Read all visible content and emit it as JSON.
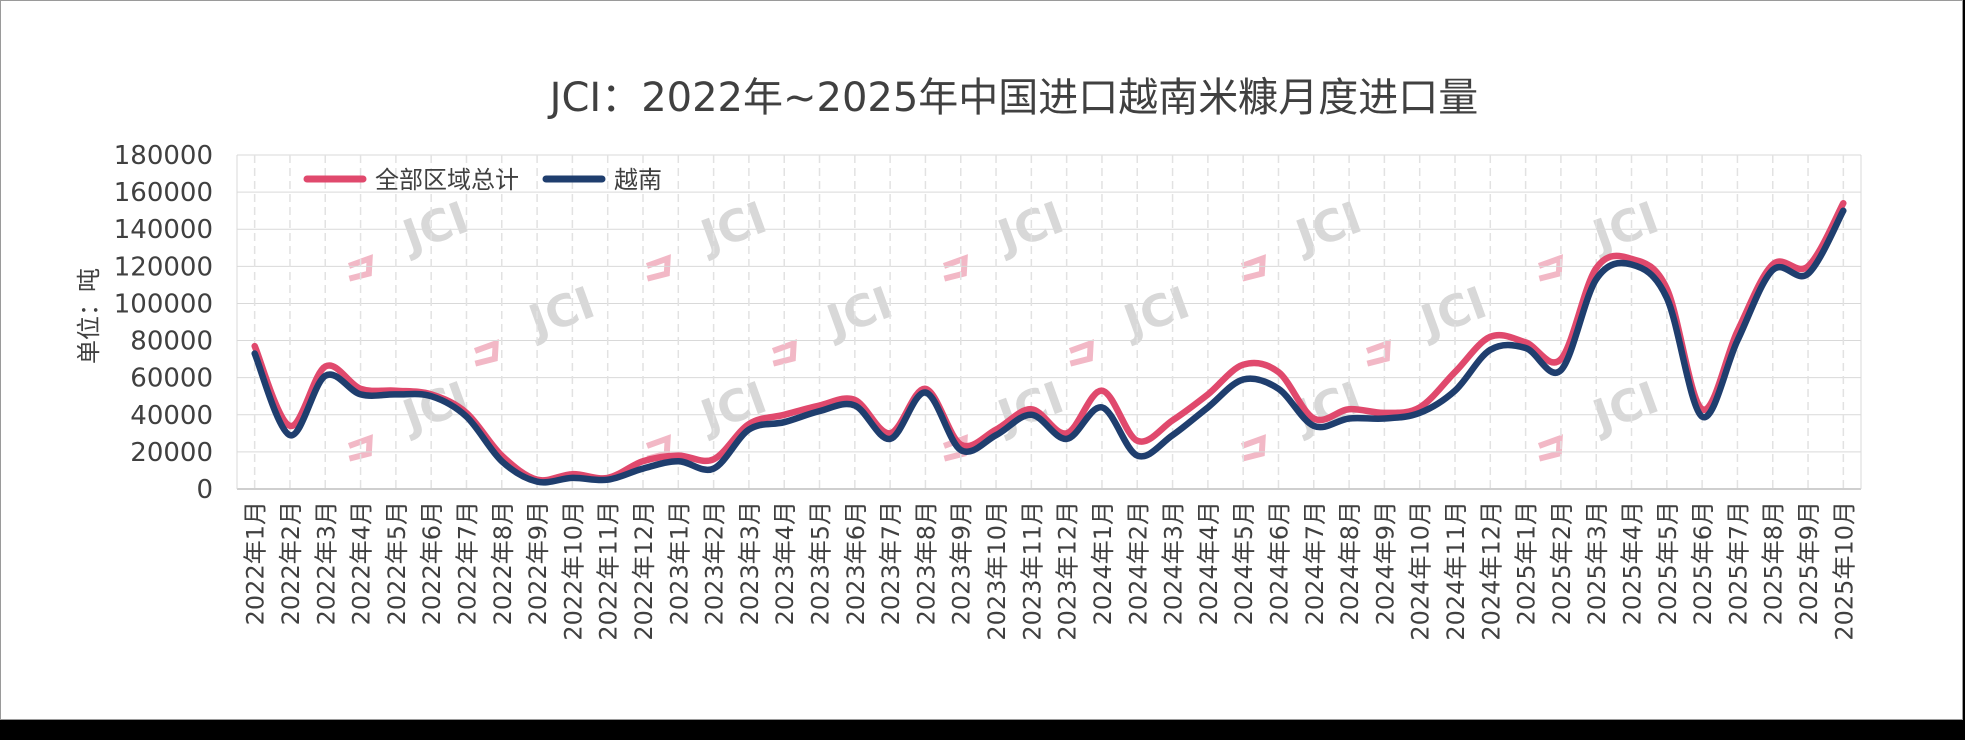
{
  "chart_data": {
    "type": "line",
    "title": "JCI：2022年~2025年中国进口越南米糠月度进口量",
    "ylabel": "单位：吨",
    "xlabel": "",
    "ylim": [
      0,
      180000
    ],
    "yticks": [
      "0",
      "20000",
      "40000",
      "60000",
      "80000",
      "100000",
      "120000",
      "140000",
      "160000",
      "180000"
    ],
    "grid": true,
    "legend_position": "top-left",
    "watermark": "JCI",
    "categories": [
      "2022年1月",
      "2022年2月",
      "2022年3月",
      "2022年4月",
      "2022年5月",
      "2022年6月",
      "2022年7月",
      "2022年8月",
      "2022年9月",
      "2022年10月",
      "2022年11月",
      "2022年12月",
      "2023年1月",
      "2023年2月",
      "2023年3月",
      "2023年4月",
      "2023年5月",
      "2023年6月",
      "2023年7月",
      "2023年8月",
      "2023年9月",
      "2023年10月",
      "2023年11月",
      "2023年12月",
      "2024年1月",
      "2024年2月",
      "2024年3月",
      "2024年4月",
      "2024年5月",
      "2024年6月",
      "2024年7月",
      "2024年8月",
      "2024年9月",
      "2024年10月",
      "2024年11月",
      "2024年12月",
      "2025年1月",
      "2025年2月",
      "2025年3月",
      "2025年4月",
      "2025年5月",
      "2025年6月",
      "2025年7月",
      "2025年8月",
      "2025年9月",
      "2025年10月"
    ],
    "series": [
      {
        "name": "全部区域总计",
        "color": "#e0496d",
        "values": [
          77000,
          34000,
          66000,
          54000,
          53000,
          51000,
          41000,
          18000,
          5000,
          8000,
          6000,
          15000,
          18000,
          16000,
          35000,
          40000,
          45000,
          48000,
          30000,
          54000,
          24000,
          32000,
          43000,
          30000,
          53000,
          26000,
          37000,
          51000,
          67000,
          63000,
          38000,
          43000,
          41000,
          44000,
          63000,
          82000,
          79000,
          70000,
          119000,
          124000,
          108000,
          43000,
          85000,
          121000,
          120000,
          154000
        ]
      },
      {
        "name": "越南",
        "color": "#1f3e6e",
        "values": [
          73000,
          29000,
          61000,
          51000,
          51000,
          50000,
          39000,
          15000,
          4000,
          6000,
          5000,
          11000,
          15000,
          11000,
          32000,
          36000,
          42000,
          45000,
          27000,
          52000,
          21000,
          29000,
          40000,
          27000,
          44000,
          18000,
          29000,
          44000,
          59000,
          54000,
          34000,
          38000,
          38000,
          41000,
          53000,
          75000,
          76000,
          64000,
          113000,
          121000,
          103000,
          39000,
          80000,
          118000,
          116000,
          150000
        ]
      }
    ]
  }
}
